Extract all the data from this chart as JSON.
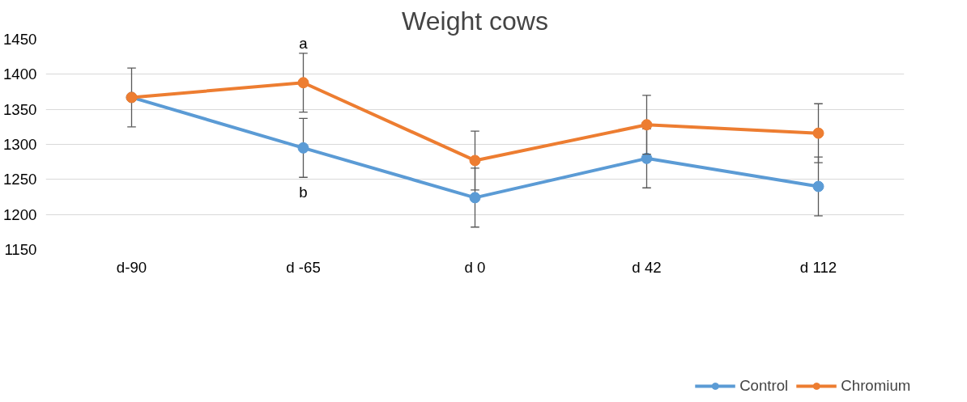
{
  "chart_data": {
    "type": "line",
    "title": "Weight cows",
    "categories": [
      "d-90",
      "d -65",
      "d 0",
      "d 42",
      "d 112"
    ],
    "series": [
      {
        "name": "Control",
        "color": "#5b9bd5",
        "values": [
          1367,
          1295,
          1224,
          1280,
          1240
        ],
        "errors": [
          null,
          42,
          42,
          42,
          42
        ]
      },
      {
        "name": "Chromium",
        "color": "#ed7d31",
        "values": [
          1367,
          1388,
          1277,
          1328,
          1316
        ],
        "errors": [
          42,
          42,
          42,
          42,
          42
        ]
      }
    ],
    "annotations": [
      "a",
      "b"
    ],
    "ylim": [
      1150,
      1450
    ],
    "yticks": [
      1150,
      1200,
      1250,
      1300,
      1350,
      1400,
      1450
    ],
    "grid": "y",
    "legend": "bottom",
    "marker": "circle",
    "line_style": "solid"
  }
}
